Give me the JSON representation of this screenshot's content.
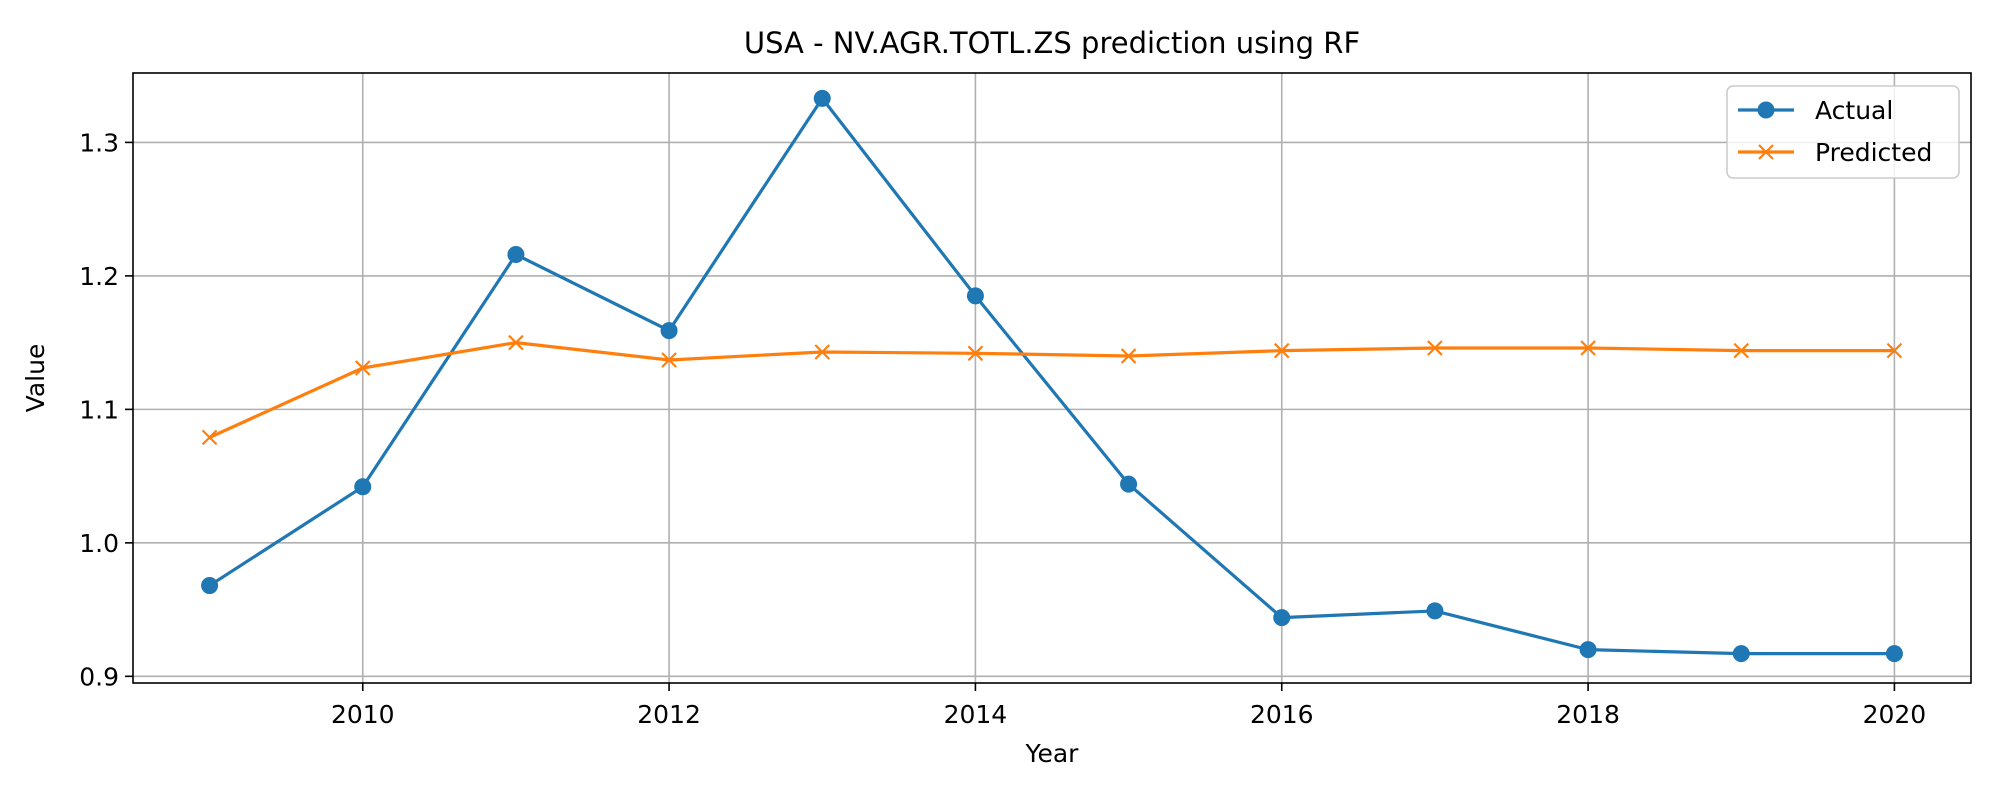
{
  "chart_data": {
    "type": "line",
    "title": "USA - NV.AGR.TOTL.ZS prediction using RF",
    "xlabel": "Year",
    "ylabel": "Value",
    "xlim": [
      2008.5,
      2020.5
    ],
    "ylim": [
      0.895,
      1.352
    ],
    "xticks": [
      2010,
      2012,
      2014,
      2016,
      2018,
      2020
    ],
    "yticks": [
      0.9,
      1.0,
      1.1,
      1.2,
      1.3
    ],
    "grid": true,
    "legend_position": "top-right",
    "x": [
      2009,
      2010,
      2011,
      2012,
      2013,
      2014,
      2015,
      2016,
      2017,
      2018,
      2019,
      2020
    ],
    "series": [
      {
        "name": "Actual",
        "marker": "circle",
        "color": "#1f77b4",
        "values": [
          0.968,
          1.042,
          1.216,
          1.159,
          1.333,
          1.185,
          1.044,
          0.944,
          0.949,
          0.92,
          0.917,
          0.917
        ]
      },
      {
        "name": "Predicted",
        "marker": "x",
        "color": "#ff7f0e",
        "values": [
          1.079,
          1.131,
          1.15,
          1.137,
          1.143,
          1.142,
          1.14,
          1.144,
          1.146,
          1.146,
          1.144,
          1.144
        ]
      }
    ]
  }
}
